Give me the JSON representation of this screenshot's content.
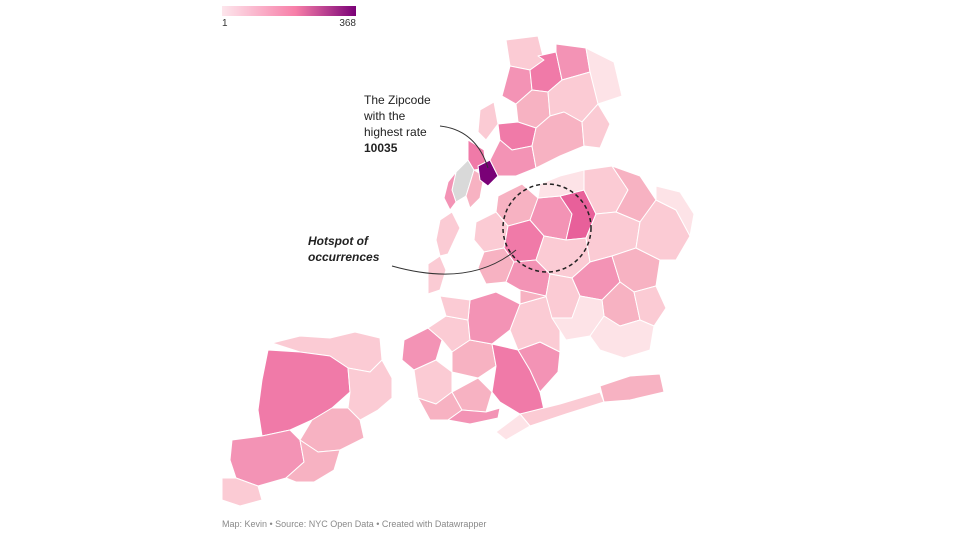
{
  "legend": {
    "min_label": "1",
    "max_label": "368",
    "color_low": "#fde6ec",
    "color_mid": "#f77ea8",
    "color_high": "#7a0177"
  },
  "annotations": {
    "zipcode_line1": "The Zipcode",
    "zipcode_line2": "with the",
    "zipcode_line3": "highest rate",
    "zipcode_value": "10035",
    "hotspot_line1": "Hotspot of",
    "hotspot_line2": "occurrences"
  },
  "footer": "Map: Kevin • Source: NYC Open Data • Created with Datawrapper",
  "colors": {
    "very_light": "#fde3e7",
    "light": "#fbcbd4",
    "medium_light": "#f7b2c2",
    "medium": "#f393b5",
    "strong": "#f07aa8",
    "very_strong": "#e8609a",
    "highest": "#7a0177",
    "no_data": "#d9d9d9",
    "water_stroke": "#ffffff"
  }
}
